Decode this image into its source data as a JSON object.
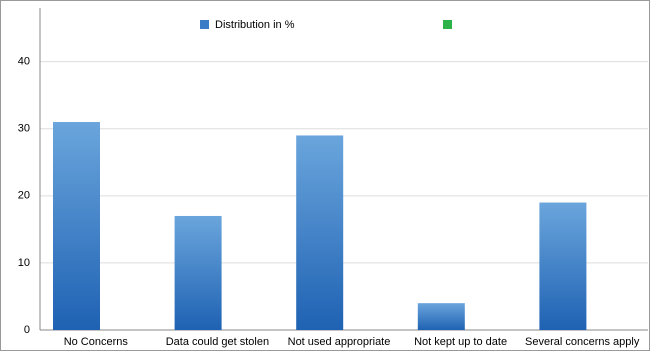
{
  "chart_data": {
    "type": "bar",
    "categories": [
      "No Concerns",
      "Data could get stolen",
      "Not used appropriate",
      "Not kept up to date",
      "Several concerns apply"
    ],
    "series": [
      {
        "name": "Distribution in %",
        "color": "#3b7cc6",
        "values": [
          31,
          17,
          29,
          4,
          19
        ]
      },
      {
        "name": null,
        "color": "#2db24a",
        "values": [
          null,
          null,
          null,
          null,
          null
        ]
      }
    ],
    "ylim": [
      0,
      48
    ],
    "yticks": [
      0,
      10,
      20,
      30,
      40
    ],
    "grid": true,
    "legend": "top"
  }
}
